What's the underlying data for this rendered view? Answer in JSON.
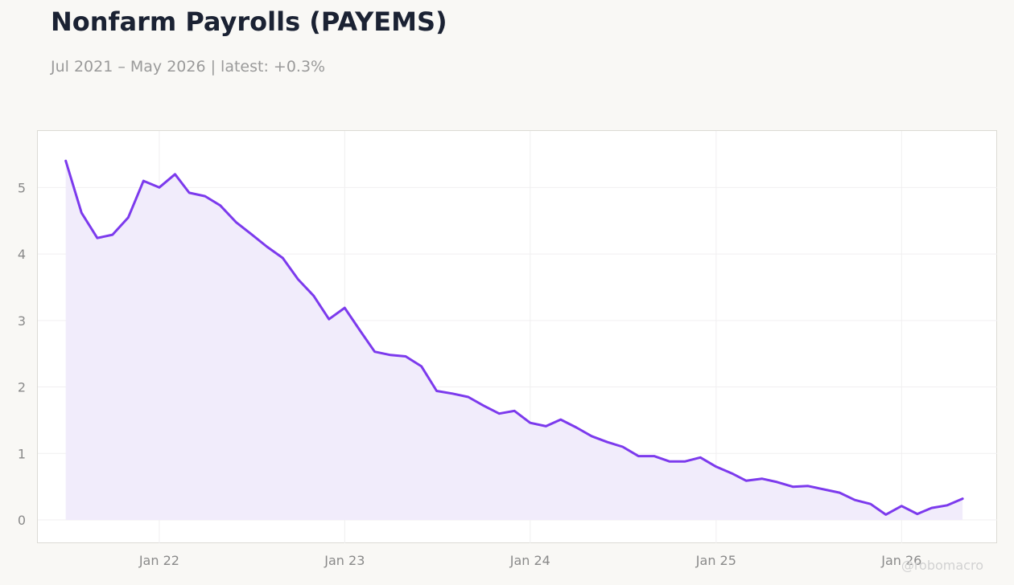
{
  "title": "Nonfarm Payrolls (PAYEMS)",
  "subtitle": "Jul 2021 – May 2026 | latest: +0.3%",
  "watermark": "@robomacro",
  "colors": {
    "line": "#7c3aed",
    "fill": "#f1ecfb",
    "background": "#f9f8f5",
    "plot_background": "#ffffff",
    "grid": "#f0eff0"
  },
  "chart_data": {
    "type": "area",
    "title": "Nonfarm Payrolls (PAYEMS)",
    "subtitle": "Jul 2021 – May 2026 | latest: +0.3%",
    "xlabel": "",
    "ylabel": "",
    "grid": true,
    "legend": "none",
    "x_ticks": [
      {
        "date": "2022-01",
        "label": "Jan 22"
      },
      {
        "date": "2023-01",
        "label": "Jan 23"
      },
      {
        "date": "2024-01",
        "label": "Jan 24"
      },
      {
        "date": "2025-01",
        "label": "Jan 25"
      },
      {
        "date": "2026-01",
        "label": "Jan 26"
      }
    ],
    "y_ticks": [
      0,
      1,
      2,
      3,
      4,
      5
    ],
    "xlim": [
      "2021-05-07",
      "2026-07-08"
    ],
    "ylim": [
      -0.35,
      5.85
    ],
    "series": [
      {
        "x": [
          "2021-07",
          "2021-08",
          "2021-09",
          "2021-10",
          "2021-11",
          "2021-12",
          "2022-01",
          "2022-02",
          "2022-03",
          "2022-04",
          "2022-05",
          "2022-06",
          "2022-07",
          "2022-08",
          "2022-09",
          "2022-10",
          "2022-11",
          "2022-12",
          "2023-01",
          "2023-02",
          "2023-03",
          "2023-04",
          "2023-05",
          "2023-06",
          "2023-07",
          "2023-08",
          "2023-09",
          "2023-10",
          "2023-11",
          "2023-12",
          "2024-01",
          "2024-02",
          "2024-03",
          "2024-04",
          "2024-05",
          "2024-06",
          "2024-07",
          "2024-08",
          "2024-09",
          "2024-10",
          "2024-11",
          "2024-12",
          "2025-01",
          "2025-02",
          "2025-03",
          "2025-04",
          "2025-05",
          "2025-06",
          "2025-07",
          "2025-08",
          "2025-09",
          "2025-10",
          "2025-11",
          "2025-12",
          "2026-01",
          "2026-02",
          "2026-03",
          "2026-04",
          "2026-05"
        ],
        "values": [
          5.4,
          4.62,
          4.24,
          4.29,
          4.55,
          5.1,
          5.0,
          5.2,
          4.92,
          4.87,
          4.73,
          4.48,
          4.3,
          4.11,
          3.94,
          3.62,
          3.37,
          3.02,
          3.19,
          2.84,
          2.53,
          2.48,
          2.46,
          2.31,
          1.94,
          1.9,
          1.85,
          1.72,
          1.6,
          1.64,
          1.46,
          1.41,
          1.51,
          1.39,
          1.26,
          1.17,
          1.1,
          0.96,
          0.96,
          0.88,
          0.88,
          0.94,
          0.8,
          0.7,
          0.59,
          0.62,
          0.57,
          0.5,
          0.51,
          0.46,
          0.41,
          0.3,
          0.24,
          0.08,
          0.21,
          0.09,
          0.18,
          0.22,
          0.32
        ]
      }
    ]
  }
}
